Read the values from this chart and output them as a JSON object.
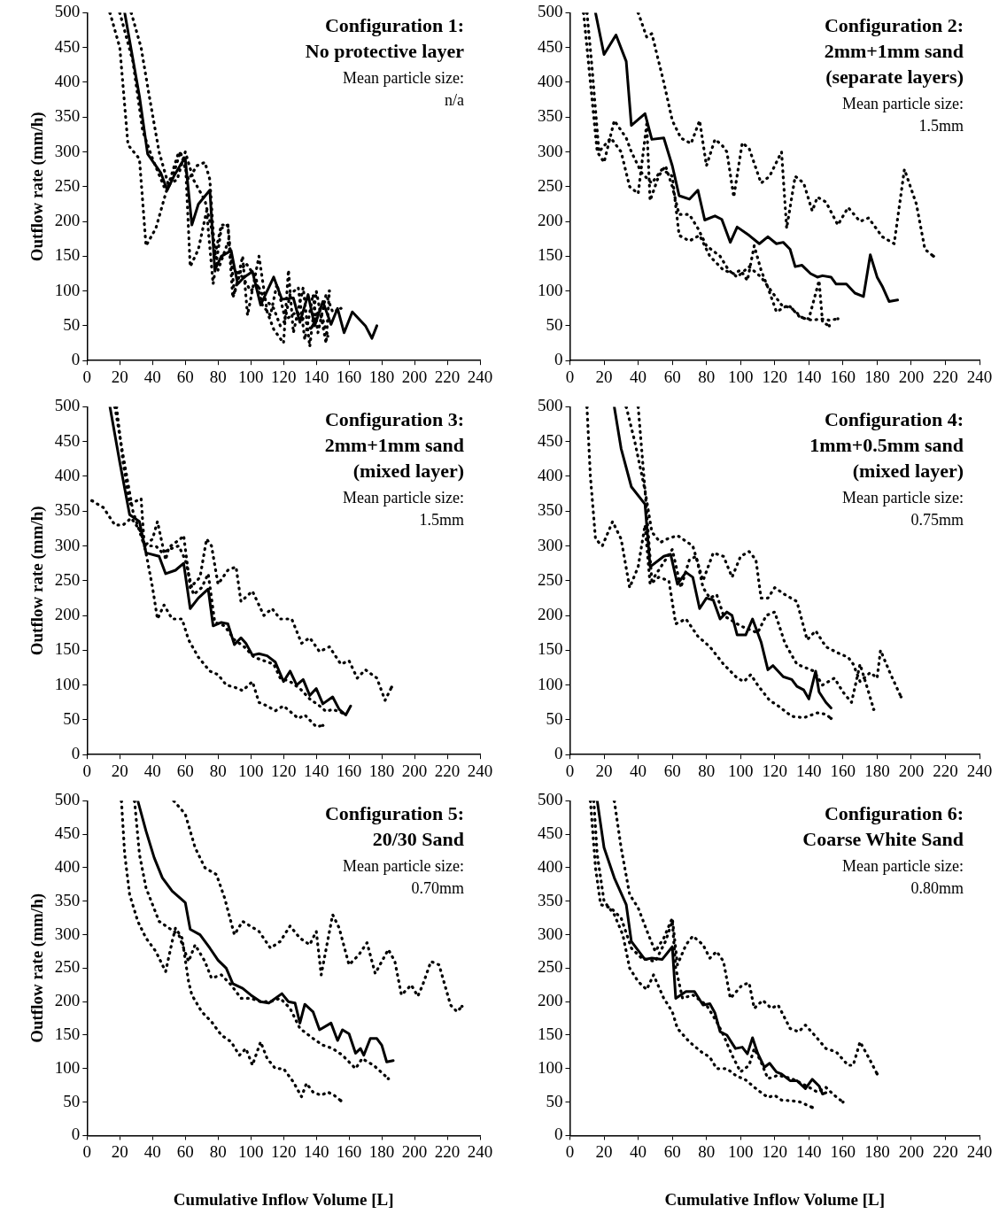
{
  "chart_data": [
    {
      "type": "line",
      "title": "Configuration 1:",
      "subtitle": "No protective layer",
      "annotations": [
        "Mean particle size:",
        "n/a"
      ],
      "ylabel": "Outflow rate (mm/h)",
      "xlim": [
        0,
        240
      ],
      "ylim": [
        0,
        500
      ],
      "xticks": [
        0,
        20,
        40,
        60,
        80,
        100,
        120,
        140,
        160,
        180,
        200,
        220,
        240
      ],
      "yticks": [
        0,
        50,
        100,
        150,
        200,
        250,
        300,
        350,
        400,
        450,
        500
      ],
      "series": [
        {
          "color": "#000000",
          "line_style": "solid",
          "x": [
            23,
            32,
            37,
            45,
            49,
            53,
            58,
            60,
            64,
            68,
            75,
            78,
            82,
            88,
            92,
            96,
            101,
            106,
            114,
            119,
            126,
            130,
            135,
            139,
            144,
            149,
            153,
            157,
            162,
            170,
            174,
            177
          ],
          "values": [
            500,
            380,
            297,
            270,
            245,
            265,
            285,
            290,
            195,
            225,
            245,
            130,
            150,
            158,
            110,
            120,
            128,
            80,
            120,
            88,
            90,
            55,
            95,
            50,
            85,
            52,
            75,
            40,
            70,
            50,
            32,
            50
          ]
        },
        {
          "color": "#000000",
          "line_style": "dotted",
          "x": [
            14,
            20,
            25,
            32,
            36,
            42,
            48,
            56,
            60,
            63,
            68,
            73,
            77,
            82,
            86,
            90,
            95,
            98,
            105,
            110,
            114,
            120,
            123,
            126,
            132,
            136,
            140,
            146,
            148
          ],
          "values": [
            500,
            450,
            310,
            290,
            165,
            190,
            240,
            300,
            290,
            135,
            160,
            215,
            110,
            190,
            195,
            95,
            150,
            65,
            150,
            70,
            45,
            25,
            130,
            40,
            105,
            20,
            100,
            25,
            100
          ]
        },
        {
          "color": "#000000",
          "line_style": "dotted",
          "x": [
            27,
            33,
            38,
            44,
            50,
            53,
            57,
            62,
            67,
            72,
            75,
            78,
            82,
            86,
            89,
            94,
            97,
            103,
            107,
            112,
            116,
            121,
            124,
            129,
            133,
            138,
            141,
            146,
            150,
            155
          ],
          "values": [
            500,
            450,
            380,
            300,
            250,
            270,
            300,
            260,
            280,
            285,
            260,
            150,
            195,
            195,
            90,
            130,
            140,
            120,
            80,
            65,
            110,
            60,
            95,
            105,
            30,
            95,
            40,
            95,
            70,
            75
          ]
        },
        {
          "color": "#000000",
          "line_style": "dotted",
          "x": [
            20,
            28,
            34,
            40,
            47,
            55,
            60,
            65,
            72,
            76,
            80,
            86,
            90,
            95,
            100,
            104,
            108,
            114,
            118,
            122,
            128,
            132,
            137,
            142,
            147
          ],
          "values": [
            500,
            430,
            330,
            290,
            250,
            260,
            300,
            260,
            230,
            190,
            130,
            170,
            130,
            120,
            100,
            110,
            90,
            75,
            50,
            60,
            70,
            60,
            45,
            75,
            35
          ]
        }
      ]
    },
    {
      "type": "line",
      "title": "Configuration 2:",
      "subtitle": "2mm+1mm sand (separate layers)",
      "annotations": [
        "Mean particle size:",
        "1.5mm"
      ],
      "xlim": [
        0,
        240
      ],
      "ylim": [
        0,
        500
      ],
      "xticks": [
        0,
        20,
        40,
        60,
        80,
        100,
        120,
        140,
        160,
        180,
        200,
        220,
        240
      ],
      "yticks": [
        0,
        50,
        100,
        150,
        200,
        250,
        300,
        350,
        400,
        450,
        500
      ],
      "series": [
        {
          "color": "#000000",
          "line_style": "solid",
          "x": [
            15,
            20,
            27,
            33,
            36,
            44,
            48,
            55,
            60,
            64,
            70,
            75,
            79,
            85,
            89,
            94,
            98,
            105,
            111,
            116,
            121,
            125,
            129,
            132,
            136,
            141,
            145,
            148,
            153,
            156,
            162,
            167,
            172,
            176,
            180,
            183,
            187,
            192
          ],
          "values": [
            500,
            440,
            468,
            430,
            338,
            355,
            318,
            320,
            280,
            237,
            232,
            245,
            202,
            208,
            203,
            170,
            192,
            180,
            168,
            178,
            168,
            170,
            160,
            135,
            137,
            125,
            120,
            122,
            120,
            110,
            110,
            97,
            92,
            152,
            120,
            107,
            85,
            87
          ]
        },
        {
          "color": "#000000",
          "line_style": "dotted",
          "x": [
            40,
            45,
            48,
            55,
            60,
            65,
            71,
            76,
            80,
            85,
            89,
            92,
            96,
            101,
            105,
            112,
            117,
            124,
            127,
            132,
            137,
            142,
            145,
            150,
            157,
            163,
            170,
            175,
            183,
            190,
            196,
            203,
            208,
            213
          ],
          "values": [
            500,
            465,
            470,
            400,
            345,
            320,
            312,
            345,
            280,
            318,
            310,
            300,
            235,
            313,
            305,
            255,
            265,
            300,
            190,
            265,
            255,
            215,
            235,
            228,
            195,
            220,
            200,
            205,
            178,
            168,
            275,
            225,
            160,
            150
          ]
        },
        {
          "color": "#000000",
          "line_style": "dotted",
          "x": [
            8,
            12,
            16,
            20,
            26,
            33,
            36,
            42,
            48,
            54,
            60,
            64,
            70,
            76,
            82,
            90,
            96,
            100,
            104,
            108,
            112,
            116,
            121,
            128,
            135,
            142,
            147,
            152,
            157
          ],
          "values": [
            500,
            400,
            300,
            285,
            345,
            320,
            300,
            270,
            255,
            275,
            265,
            180,
            172,
            180,
            150,
            130,
            125,
            130,
            115,
            165,
            130,
            105,
            70,
            80,
            62,
            58,
            60,
            58,
            60
          ]
        },
        {
          "color": "#000000",
          "line_style": "dotted",
          "x": [
            10,
            13,
            17,
            24,
            30,
            35,
            40,
            45,
            47,
            52,
            56,
            60,
            64,
            70,
            75,
            80,
            88,
            93,
            98,
            105,
            112,
            118,
            124,
            130,
            136,
            140,
            146,
            148,
            152
          ],
          "values": [
            500,
            420,
            300,
            320,
            300,
            250,
            240,
            340,
            230,
            265,
            280,
            250,
            210,
            210,
            190,
            165,
            150,
            130,
            120,
            135,
            120,
            100,
            80,
            75,
            62,
            60,
            115,
            55,
            50
          ]
        }
      ]
    },
    {
      "type": "line",
      "title": "Configuration 3:",
      "subtitle": "2mm+1mm sand (mixed layer)",
      "annotations": [
        "Mean particle size:",
        "1.5mm"
      ],
      "ylabel": "Outflow rate (mm/h)",
      "xlim": [
        0,
        240
      ],
      "ylim": [
        0,
        500
      ],
      "xticks": [
        0,
        20,
        40,
        60,
        80,
        100,
        120,
        140,
        160,
        180,
        200,
        220,
        240
      ],
      "yticks": [
        0,
        50,
        100,
        150,
        200,
        250,
        300,
        350,
        400,
        450,
        500
      ],
      "series": [
        {
          "color": "#000000",
          "line_style": "solid",
          "x": [
            14,
            20,
            26,
            32,
            36,
            44,
            48,
            54,
            59,
            63,
            68,
            74,
            77,
            82,
            86,
            90,
            94,
            97,
            101,
            105,
            110,
            115,
            120,
            124,
            128,
            132,
            136,
            140,
            144,
            150,
            154,
            158,
            161
          ],
          "values": [
            500,
            420,
            345,
            335,
            290,
            285,
            260,
            265,
            275,
            210,
            225,
            238,
            185,
            190,
            188,
            158,
            168,
            160,
            143,
            145,
            142,
            133,
            105,
            120,
            100,
            108,
            85,
            95,
            73,
            83,
            65,
            57,
            70
          ]
        },
        {
          "color": "#000000",
          "line_style": "dotted",
          "x": [
            3,
            10,
            17,
            22,
            27,
            33,
            36,
            40,
            43,
            47,
            52,
            58,
            62,
            68,
            75,
            80,
            85,
            90,
            95,
            101,
            105,
            110,
            115,
            120,
            125,
            129,
            133,
            140,
            144
          ],
          "values": [
            365,
            355,
            330,
            330,
            340,
            320,
            290,
            240,
            195,
            215,
            195,
            195,
            165,
            140,
            120,
            115,
            100,
            97,
            92,
            105,
            75,
            70,
            63,
            70,
            60,
            52,
            57,
            40,
            42
          ]
        },
        {
          "color": "#000000",
          "line_style": "dotted",
          "x": [
            18,
            22,
            26,
            33,
            35,
            40,
            43,
            48,
            50,
            57,
            59,
            63,
            69,
            73,
            76,
            80,
            86,
            91,
            94,
            101,
            108,
            113,
            118,
            125,
            131,
            136,
            142,
            148,
            155,
            160,
            165,
            170,
            177,
            182,
            186
          ],
          "values": [
            500,
            420,
            360,
            368,
            300,
            310,
            335,
            280,
            298,
            310,
            315,
            240,
            255,
            310,
            300,
            245,
            265,
            270,
            220,
            235,
            200,
            210,
            195,
            195,
            160,
            168,
            148,
            155,
            130,
            135,
            110,
            122,
            110,
            78,
            97
          ]
        },
        {
          "color": "#000000",
          "line_style": "dotted",
          "x": [
            17,
            22,
            28,
            35,
            42,
            46,
            50,
            56,
            60,
            65,
            70,
            74,
            78,
            84,
            90,
            96,
            102,
            108,
            114,
            118,
            124,
            130,
            136,
            142,
            146,
            150,
            156
          ],
          "values": [
            500,
            430,
            350,
            300,
            300,
            290,
            295,
            300,
            280,
            230,
            240,
            260,
            190,
            185,
            165,
            155,
            140,
            135,
            130,
            110,
            105,
            95,
            80,
            70,
            62,
            65,
            60
          ]
        }
      ]
    },
    {
      "type": "line",
      "title": "Configuration 4:",
      "subtitle": "1mm+0.5mm sand (mixed layer)",
      "annotations": [
        "Mean particle size:",
        "0.75mm"
      ],
      "xlim": [
        0,
        240
      ],
      "ylim": [
        0,
        500
      ],
      "xticks": [
        0,
        20,
        40,
        60,
        80,
        100,
        120,
        140,
        160,
        180,
        200,
        220,
        240
      ],
      "yticks": [
        0,
        50,
        100,
        150,
        200,
        250,
        300,
        350,
        400,
        450,
        500
      ],
      "series": [
        {
          "color": "#000000",
          "line_style": "solid",
          "x": [
            26,
            30,
            36,
            44,
            47,
            55,
            59,
            63,
            68,
            72,
            76,
            80,
            84,
            88,
            92,
            95,
            98,
            103,
            107,
            112,
            116,
            119,
            125,
            130,
            133,
            137,
            140,
            144,
            146,
            150,
            153
          ],
          "values": [
            500,
            440,
            385,
            360,
            270,
            285,
            288,
            245,
            262,
            255,
            210,
            225,
            222,
            195,
            205,
            200,
            172,
            172,
            195,
            162,
            122,
            128,
            112,
            108,
            98,
            93,
            80,
            120,
            90,
            75,
            67
          ]
        },
        {
          "color": "#000000",
          "line_style": "dotted",
          "x": [
            10,
            12,
            15,
            19,
            25,
            30,
            35,
            40,
            44,
            47,
            52,
            58,
            62,
            68,
            75,
            82,
            90,
            98,
            102,
            106,
            110,
            117,
            122,
            130,
            137,
            145,
            150,
            153
          ],
          "values": [
            500,
            400,
            310,
            300,
            335,
            310,
            240,
            270,
            330,
            245,
            255,
            250,
            188,
            195,
            170,
            155,
            130,
            110,
            105,
            115,
            100,
            78,
            70,
            55,
            53,
            60,
            58,
            52
          ]
        },
        {
          "color": "#000000",
          "line_style": "dotted",
          "x": [
            33,
            38,
            44,
            48,
            53,
            57,
            63,
            72,
            78,
            84,
            90,
            95,
            100,
            105,
            109,
            112,
            116,
            120,
            126,
            133,
            139,
            144,
            150,
            158,
            163,
            166,
            170,
            176,
            180,
            182,
            188,
            194
          ],
          "values": [
            500,
            450,
            380,
            320,
            305,
            310,
            315,
            300,
            250,
            290,
            285,
            255,
            285,
            292,
            280,
            225,
            225,
            240,
            230,
            220,
            165,
            178,
            155,
            145,
            140,
            130,
            105,
            118,
            110,
            150,
            115,
            83
          ]
        },
        {
          "color": "#000000",
          "line_style": "dotted",
          "x": [
            40,
            44,
            48,
            56,
            60,
            65,
            70,
            74,
            78,
            82,
            86,
            90,
            100,
            110,
            115,
            120,
            126,
            133,
            138,
            143,
            148,
            155,
            160,
            165,
            170,
            175,
            178
          ],
          "values": [
            500,
            380,
            250,
            280,
            295,
            240,
            280,
            285,
            240,
            225,
            230,
            200,
            185,
            175,
            200,
            205,
            160,
            130,
            125,
            120,
            100,
            110,
            90,
            75,
            130,
            90,
            65
          ]
        }
      ]
    },
    {
      "type": "line",
      "title": "Configuration 5:",
      "subtitle": "20/30 Sand",
      "annotations": [
        "Mean particle size:",
        "0.70mm"
      ],
      "xlabel": "Cumulative Inflow Volume [L]",
      "ylabel": "Outflow rate (mm/h)",
      "xlim": [
        0,
        240
      ],
      "ylim": [
        0,
        500
      ],
      "xticks": [
        0,
        20,
        40,
        60,
        80,
        100,
        120,
        140,
        160,
        180,
        200,
        220,
        240
      ],
      "yticks": [
        0,
        50,
        100,
        150,
        200,
        250,
        300,
        350,
        400,
        450,
        500
      ],
      "series": [
        {
          "color": "#000000",
          "line_style": "solid",
          "x": [
            31,
            36,
            41,
            46,
            52,
            60,
            63,
            69,
            75,
            80,
            85,
            89,
            95,
            100,
            106,
            111,
            119,
            123,
            127,
            130,
            133,
            138,
            142,
            149,
            153,
            156,
            160,
            164,
            167,
            169,
            173,
            177,
            180,
            183,
            187
          ],
          "values": [
            500,
            455,
            415,
            385,
            365,
            348,
            308,
            300,
            280,
            262,
            250,
            227,
            220,
            210,
            200,
            198,
            212,
            200,
            198,
            168,
            196,
            185,
            158,
            168,
            142,
            158,
            152,
            123,
            130,
            120,
            145,
            145,
            135,
            110,
            112
          ]
        },
        {
          "color": "#000000",
          "line_style": "dotted",
          "x": [
            21,
            23,
            26,
            31,
            36,
            42,
            48,
            52,
            54,
            58,
            62,
            64,
            70,
            76,
            82,
            88,
            93,
            97,
            101,
            106,
            110,
            115,
            120,
            126,
            131,
            134,
            138,
            143,
            147,
            151,
            155
          ],
          "values": [
            500,
            420,
            360,
            320,
            295,
            275,
            245,
            290,
            310,
            295,
            230,
            210,
            185,
            170,
            150,
            140,
            120,
            130,
            105,
            140,
            115,
            100,
            100,
            80,
            58,
            78,
            65,
            60,
            65,
            60,
            52
          ]
        },
        {
          "color": "#000000",
          "line_style": "dotted",
          "x": [
            53,
            60,
            66,
            72,
            79,
            84,
            90,
            95,
            105,
            112,
            118,
            124,
            130,
            136,
            140,
            143,
            150,
            154,
            160,
            166,
            171,
            176,
            184,
            188,
            192,
            198,
            202,
            205,
            210,
            215,
            222,
            226,
            229
          ],
          "values": [
            500,
            480,
            430,
            400,
            390,
            355,
            300,
            320,
            305,
            280,
            290,
            313,
            295,
            285,
            305,
            240,
            330,
            310,
            255,
            270,
            288,
            242,
            278,
            260,
            210,
            225,
            208,
            225,
            260,
            255,
            195,
            185,
            193
          ]
        },
        {
          "color": "#000000",
          "line_style": "dotted",
          "x": [
            29,
            32,
            36,
            44,
            50,
            56,
            62,
            66,
            72,
            76,
            82,
            88,
            94,
            100,
            106,
            112,
            118,
            124,
            130,
            138,
            144,
            150,
            156,
            164,
            168,
            175,
            184
          ],
          "values": [
            500,
            420,
            370,
            320,
            310,
            300,
            260,
            285,
            260,
            235,
            240,
            225,
            205,
            205,
            200,
            200,
            205,
            190,
            160,
            145,
            135,
            130,
            120,
            100,
            115,
            105,
            85
          ]
        }
      ]
    },
    {
      "type": "line",
      "title": "Configuration 6:",
      "subtitle": "Coarse White Sand",
      "annotations": [
        "Mean particle size:",
        "0.80mm"
      ],
      "xlabel": "Cumulative Inflow Volume [L]",
      "xlim": [
        0,
        240
      ],
      "ylim": [
        0,
        500
      ],
      "xticks": [
        0,
        20,
        40,
        60,
        80,
        100,
        120,
        140,
        160,
        180,
        200,
        220,
        240
      ],
      "yticks": [
        0,
        50,
        100,
        150,
        200,
        250,
        300,
        350,
        400,
        450,
        500
      ],
      "series": [
        {
          "color": "#000000",
          "line_style": "solid",
          "x": [
            16,
            20,
            26,
            33,
            36,
            44,
            48,
            54,
            60,
            62,
            68,
            73,
            78,
            82,
            85,
            88,
            92,
            97,
            101,
            104,
            107,
            110,
            114,
            117,
            121,
            124,
            129,
            133,
            138,
            142,
            146,
            148,
            150
          ],
          "values": [
            500,
            430,
            385,
            345,
            290,
            263,
            265,
            263,
            282,
            205,
            215,
            215,
            195,
            197,
            183,
            155,
            150,
            130,
            132,
            122,
            146,
            123,
            102,
            108,
            95,
            92,
            82,
            82,
            70,
            84,
            74,
            62,
            64
          ]
        },
        {
          "color": "#000000",
          "line_style": "dotted",
          "x": [
            14,
            16,
            20,
            26,
            31,
            35,
            40,
            45,
            49,
            55,
            60,
            63,
            70,
            77,
            82,
            86,
            92,
            98,
            102,
            110,
            116,
            120,
            124,
            130,
            135,
            142
          ],
          "values": [
            500,
            420,
            350,
            330,
            300,
            250,
            230,
            218,
            240,
            205,
            185,
            160,
            140,
            125,
            117,
            100,
            100,
            88,
            85,
            68,
            57,
            60,
            53,
            52,
            50,
            42
          ]
        },
        {
          "color": "#000000",
          "line_style": "dotted",
          "x": [
            26,
            30,
            35,
            40,
            46,
            50,
            55,
            60,
            63,
            68,
            72,
            78,
            82,
            86,
            90,
            94,
            101,
            105,
            108,
            113,
            118,
            122,
            129,
            134,
            138,
            144,
            150,
            156,
            163,
            166,
            170,
            176,
            180
          ],
          "values": [
            500,
            430,
            360,
            340,
            300,
            275,
            295,
            325,
            255,
            285,
            298,
            285,
            265,
            275,
            260,
            205,
            225,
            228,
            190,
            202,
            190,
            195,
            160,
            155,
            165,
            148,
            130,
            125,
            105,
            105,
            140,
            112,
            92
          ]
        },
        {
          "color": "#000000",
          "line_style": "dotted",
          "x": [
            12,
            15,
            18,
            24,
            30,
            36,
            42,
            50,
            56,
            60,
            62,
            66,
            72,
            80,
            86,
            90,
            95,
            100,
            105,
            108,
            112,
            116,
            122,
            130,
            138,
            145,
            150,
            155,
            160
          ],
          "values": [
            500,
            400,
            345,
            340,
            325,
            280,
            265,
            260,
            290,
            320,
            250,
            205,
            210,
            195,
            170,
            150,
            120,
            95,
            105,
            130,
            110,
            85,
            90,
            85,
            75,
            65,
            72,
            60,
            50
          ]
        }
      ]
    }
  ]
}
